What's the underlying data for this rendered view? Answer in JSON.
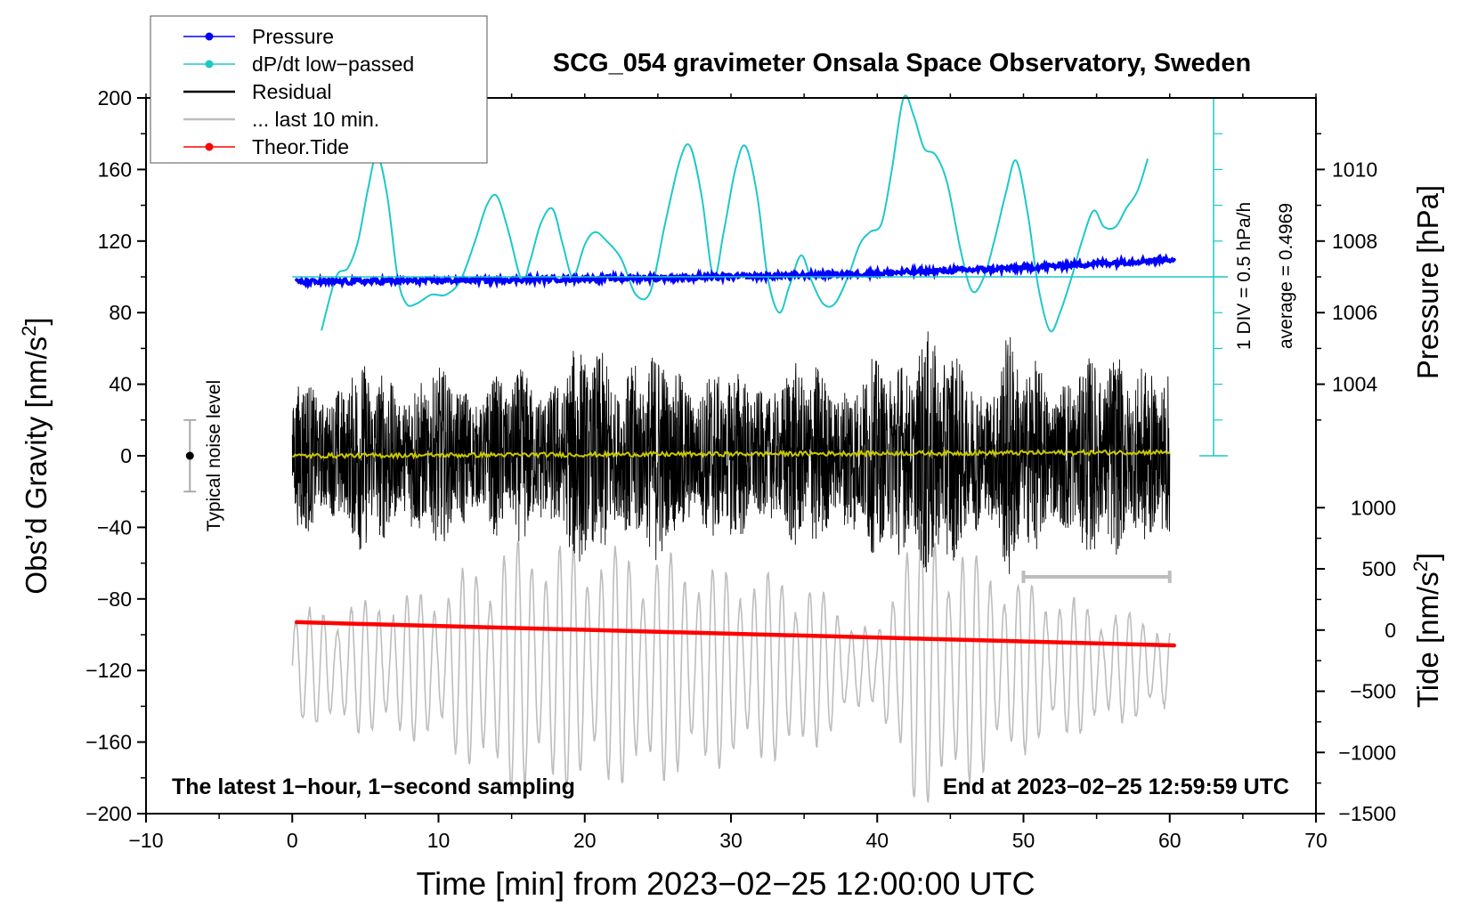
{
  "chart_data": {
    "type": "line",
    "title": "SCG_054 gravimeter Onsala Space Observatory, Sweden",
    "xlabel": "Time [min] from 2023−02−25 12:00:00 UTC",
    "ylabel_left": "Obs’d Gravity [nm/s",
    "ylabel_left_sup": "2",
    "ylabel_left_tail": "]",
    "ylabel_pressure": "Pressure [hPa]",
    "ylabel_tide": "Tide [nm/s",
    "ylabel_tide_sup": "2",
    "ylabel_tide_tail": "]",
    "xlim": [
      -10,
      70
    ],
    "ylim": [
      -200,
      200
    ],
    "x_ticks": [
      -10,
      0,
      10,
      20,
      30,
      40,
      50,
      60,
      70
    ],
    "x_tick_labels": [
      "−10",
      "0",
      "10",
      "20",
      "30",
      "40",
      "50",
      "60",
      "70"
    ],
    "y_ticks": [
      -200,
      -160,
      -120,
      -80,
      -40,
      0,
      40,
      80,
      120,
      160,
      200
    ],
    "y_tick_labels": [
      "−200",
      "−160",
      "−120",
      "−80",
      "−40",
      "0",
      "40",
      "80",
      "120",
      "160",
      "200"
    ],
    "pressure_ticks": [
      1004,
      1006,
      1008,
      1010
    ],
    "pressure_tick_labels": [
      "1004",
      "1006",
      "1008",
      "1010"
    ],
    "pressure_axis_map": {
      "hPa": [
        1004,
        1010
      ],
      "gravity": [
        40,
        160
      ]
    },
    "tide_ticks": [
      -1500,
      -1000,
      -500,
      0,
      500,
      1000
    ],
    "tide_tick_labels": [
      "−1500",
      "−1000",
      "−500",
      "0",
      "500",
      "1000"
    ],
    "tide_axis_map": {
      "tide": [
        -1500,
        1000
      ],
      "gravity": [
        -200,
        -29
      ]
    },
    "legend": [
      {
        "label": "Pressure",
        "color": "#0000ff",
        "marker": true
      },
      {
        "label": "dP/dt low−passed",
        "color": "#1ec8c8",
        "marker": true
      },
      {
        "label": "Residual",
        "color": "#000000",
        "marker": false
      },
      {
        "label": "... last 10 min.",
        "color": "#bdbdbd",
        "marker": false
      },
      {
        "label": "Theor.Tide",
        "color": "#ff0000",
        "marker": true
      }
    ],
    "annotations": {
      "bottom_left": "The latest 1−hour, 1−second sampling",
      "bottom_right": "End at 2023−02−25 12:59:59 UTC",
      "noise_label": "Typical noise level",
      "dpdt_div": "1 DIV = 0.5 hPa/h",
      "dpdt_avg": "average = 0.4969"
    },
    "noise_bar": {
      "x": -7,
      "y": 0,
      "err": 20
    },
    "last10_marker_range": [
      50,
      60
    ],
    "dpdt_axis": {
      "x": 63,
      "y_range": [
        0,
        200
      ],
      "zero_line_y": 100
    },
    "series": [
      {
        "name": "Pressure",
        "color": "#0000ff",
        "unit": "gravity-axis",
        "x": [
          0.3,
          10,
          20,
          30,
          40,
          50,
          60.3
        ],
        "y": [
          97,
          98,
          99,
          100,
          102,
          105,
          110
        ]
      },
      {
        "name": "dP/dt low-passed",
        "color": "#1ec8c8",
        "unit": "gravity-axis",
        "x": [
          2,
          3,
          3.8,
          4.5,
          5.2,
          5.8,
          6.5,
          7.2,
          7.8,
          8.5,
          9.5,
          10.5,
          11.5,
          12.5,
          13.3,
          14,
          14.8,
          15.7,
          16.3,
          17,
          17.8,
          18.5,
          19.2,
          20,
          20.7,
          21.5,
          22.5,
          23.5,
          24.5,
          25.5,
          26.5,
          27.2,
          28,
          28.8,
          29.5,
          30.3,
          31,
          31.8,
          32.5,
          33.3,
          34,
          34.8,
          35.5,
          36.3,
          37.1,
          38,
          38.8,
          39.5,
          40.3,
          41,
          41.8,
          42.5,
          43.2,
          44,
          44.8,
          45.7,
          46.5,
          47.3,
          48,
          48.8,
          49.5,
          50.3,
          51,
          51.8,
          52.5,
          53.3,
          54,
          54.8,
          55.5,
          56.3,
          57,
          57.8,
          58.5
        ],
        "y": [
          70,
          100,
          105,
          120,
          150,
          168,
          145,
          100,
          85,
          85,
          90,
          90,
          98,
          120,
          140,
          145,
          125,
          98,
          110,
          130,
          138,
          118,
          100,
          118,
          125,
          120,
          110,
          90,
          92,
          130,
          165,
          173,
          145,
          100,
          125,
          160,
          173,
          145,
          100,
          80,
          95,
          112,
          98,
          85,
          85,
          100,
          118,
          125,
          130,
          160,
          200,
          190,
          172,
          168,
          152,
          115,
          92,
          100,
          120,
          147,
          165,
          135,
          95,
          70,
          80,
          100,
          120,
          137,
          128,
          128,
          138,
          148,
          166
        ]
      },
      {
        "name": "Residual",
        "color": "#000000",
        "x_range": [
          0,
          60
        ],
        "envelope": {
          "x": [
            0,
            5,
            10,
            15,
            20,
            25,
            30,
            35,
            40,
            42,
            43,
            45,
            47.5,
            49,
            50,
            53,
            55,
            57,
            60
          ],
          "amp": [
            45,
            55,
            50,
            48,
            65,
            60,
            50,
            55,
            55,
            70,
            85,
            60,
            55,
            75,
            55,
            60,
            55,
            70,
            45
          ]
        }
      },
      {
        "name": "Yellow mean",
        "color": "#c8c800",
        "x": [
          0,
          60
        ],
        "y": [
          0,
          2
        ]
      },
      {
        "name": "... last 10 min.",
        "color": "#bdbdbd",
        "unit": "tide-axis",
        "x_range": [
          0,
          60
        ],
        "envelope": {
          "x": [
            0,
            5,
            10,
            15,
            20,
            25,
            30,
            35,
            40,
            42,
            45,
            50,
            55,
            60
          ],
          "amp": [
            450,
            550,
            650,
            1050,
            1000,
            950,
            800,
            750,
            250,
            1200,
            1050,
            700,
            500,
            380
          ]
        }
      },
      {
        "name": "Theor.Tide",
        "color": "#ff0000",
        "unit": "gravity-axis",
        "x": [
          0.3,
          60.3
        ],
        "y": [
          -93,
          -106
        ]
      }
    ]
  }
}
